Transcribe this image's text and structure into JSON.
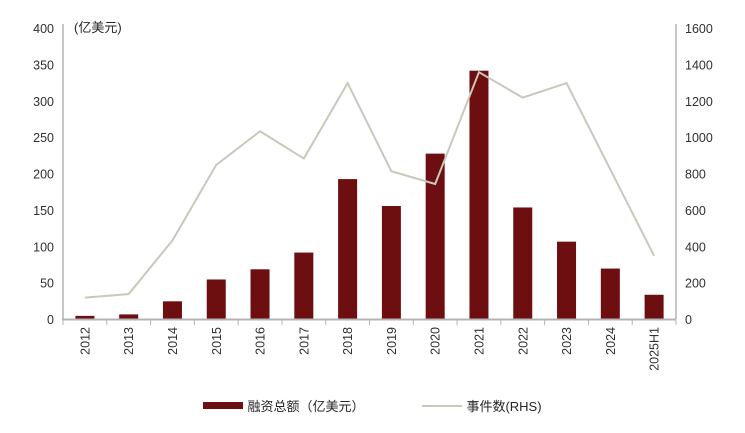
{
  "chart_data": {
    "type": "bar_line_combo",
    "unit_label": "(亿美元)",
    "categories": [
      "2012",
      "2013",
      "2014",
      "2015",
      "2016",
      "2017",
      "2018",
      "2019",
      "2020",
      "2021",
      "2022",
      "2023",
      "2024",
      "2025H1"
    ],
    "series": [
      {
        "name": "融资总额（亿美元）",
        "type": "bar",
        "axis": "left",
        "color": "#6D0E11",
        "values": [
          5,
          7,
          25,
          55,
          69,
          92,
          193,
          156,
          228,
          342,
          154,
          107,
          70,
          34
        ]
      },
      {
        "name": "事件数(RHS)",
        "type": "line",
        "axis": "right",
        "color": "#C9C8B9",
        "values": [
          120,
          140,
          435,
          850,
          1035,
          885,
          1300,
          815,
          745,
          1360,
          1220,
          1300,
          825,
          350
        ]
      }
    ],
    "left_axis": {
      "min": 0,
      "max": 400,
      "step": 50,
      "labels": [
        "400",
        "350",
        "300",
        "250",
        "200",
        "150",
        "100",
        "50",
        "0"
      ]
    },
    "right_axis": {
      "min": 0,
      "max": 1600,
      "step": 200,
      "labels": [
        "1600",
        "1400",
        "1200",
        "1000",
        "800",
        "600",
        "400",
        "200",
        "0"
      ]
    },
    "grid": false,
    "legend_position": "bottom"
  },
  "colors": {
    "bar": "#6D0E11",
    "line": "#C9C8B9",
    "axis": "#A8A8A8",
    "text": "#303030",
    "background": "#FFFFFF"
  }
}
